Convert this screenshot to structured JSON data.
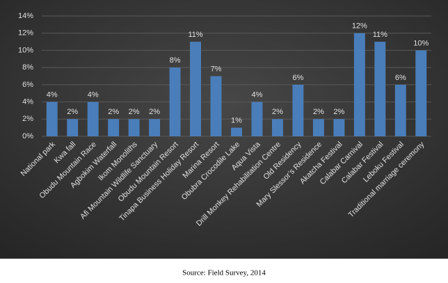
{
  "chart_data": {
    "type": "bar",
    "categories": [
      "National park",
      "Kwa fall",
      "Obudu Mountain Race",
      "Agbokim Waterfall",
      "Ikom Monoliths",
      "Afi Mountain Wildlife Sanctuary",
      "Obudu Mountain Resort",
      "Tinapa Business Holiday Resort",
      "Marina Resort",
      "Obubra Crocodile Lake",
      "Aqua Vista",
      "Drill Monkey Rehabilitation Centre",
      "Old Residency",
      "Mary Slessor’s Residence",
      "Akatcha Festival",
      "Calabar Carnival",
      "Calabar Festival",
      "Leboku Festival",
      "Traditional marriage ceremony"
    ],
    "values": [
      4,
      2,
      4,
      2,
      2,
      2,
      8,
      11,
      7,
      1,
      4,
      2,
      6,
      2,
      2,
      12,
      11,
      6,
      10
    ],
    "value_labels": [
      "4%",
      "2%",
      "4%",
      "2%",
      "2%",
      "2%",
      "8%",
      "11%",
      "7%",
      "1%",
      "4%",
      "2%",
      "6%",
      "2%",
      "2%",
      "12%",
      "11%",
      "6%",
      "10%"
    ],
    "color": "#4a7ebb",
    "ylim": [
      0,
      14
    ],
    "yticks": [
      {
        "value": 0,
        "label": "0%"
      },
      {
        "value": 2,
        "label": "2%"
      },
      {
        "value": 4,
        "label": "4%"
      },
      {
        "value": 6,
        "label": "6%"
      },
      {
        "value": 8,
        "label": "8%"
      },
      {
        "value": 10,
        "label": "10%"
      },
      {
        "value": 12,
        "label": "12%"
      },
      {
        "value": 14,
        "label": "14%"
      }
    ],
    "grid": true,
    "source": "Source: Field Survey, 2014"
  }
}
